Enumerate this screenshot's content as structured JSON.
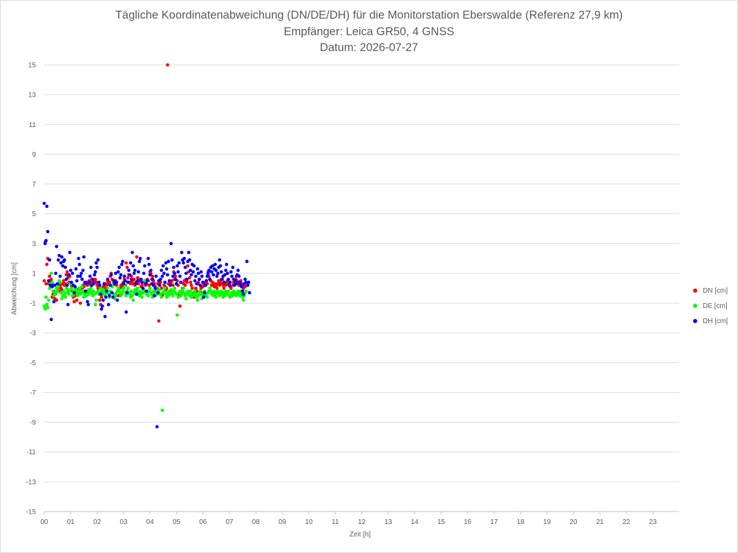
{
  "chart_data": {
    "type": "scatter",
    "title": "Tägliche Koordinatenabweichung (DN/DE/DH) für die Monitorstation Eberswalde (Referenz 27,9 km)",
    "subtitle": "Empfänger: Leica GR50, 4 GNSS",
    "date_line": "Datum: 2026-07-27",
    "xlabel": "Zeit [h]",
    "ylabel": "Abweichung [cm]",
    "xlim": [
      0,
      24
    ],
    "ylim": [
      -15,
      15
    ],
    "x_ticks": [
      "00",
      "01",
      "02",
      "03",
      "04",
      "05",
      "06",
      "07",
      "08",
      "09",
      "10",
      "11",
      "12",
      "13",
      "14",
      "15",
      "16",
      "17",
      "18",
      "19",
      "20",
      "21",
      "22",
      "23"
    ],
    "y_ticks": [
      15,
      13,
      11,
      9,
      7,
      5,
      3,
      1,
      -1,
      -3,
      -5,
      -7,
      -9,
      -11,
      -13,
      -15
    ],
    "grid": "horizontal",
    "legend_position": "right",
    "sample_interval_h": 0.0333,
    "series": [
      {
        "name": "DN [cm]",
        "color": "#ff0000",
        "values": [
          0.5,
          3.1,
          0.3,
          1.6,
          2.0,
          0.3,
          0.8,
          0.5,
          0.6,
          -0.6,
          -0.4,
          -0.2,
          -0.7,
          -0.3,
          -0.8,
          0.0,
          0.1,
          -0.2,
          0.2,
          0.0,
          -0.1,
          0.3,
          0.5,
          0.2,
          0.3,
          0.9,
          1.1,
          0.7,
          0.4,
          0.8,
          0.3,
          0.1,
          -0.2,
          -0.6,
          -0.9,
          -0.5,
          -0.3,
          -0.8,
          -0.4,
          -0.1,
          0.0,
          -1.0,
          -0.3,
          0.0,
          0.2,
          0.1,
          -0.2,
          0.3,
          0.4,
          0.2,
          0.3,
          0.5,
          0.4,
          0.2,
          0.6,
          0.4,
          0.3,
          0.5,
          0.6,
          0.4,
          0.2,
          0.0,
          -0.4,
          -0.8,
          -1.1,
          -0.6,
          -0.3,
          0.1,
          0.2,
          0.0,
          0.3,
          0.2,
          0.5,
          0.3,
          0.4,
          0.8,
          1.0,
          0.6,
          0.2,
          0.4,
          0.3,
          0.5,
          0.2,
          -0.2,
          -0.5,
          -0.1,
          0.0,
          0.2,
          0.1,
          0.3,
          0.4,
          0.6,
          0.2,
          1.7,
          1.4,
          0.7,
          0.9,
          0.4,
          0.3,
          0.8,
          0.5,
          0.3,
          0.6,
          0.2,
          0.4,
          2.1,
          0.7,
          0.3,
          0.5,
          0.6,
          0.1,
          0.2,
          -0.3,
          -0.1,
          0.4,
          0.2,
          0.3,
          0.6,
          0.5,
          0.2,
          1.1,
          1.0,
          0.6,
          0.8,
          0.5,
          0.3,
          0.1,
          -0.2,
          0.0,
          0.3,
          -2.2,
          0.2,
          0.4,
          0.0,
          -0.5,
          -0.3,
          0.2,
          0.1,
          -0.1,
          0.0,
          15.0,
          0.3,
          -0.2,
          0.2,
          0.4,
          0.5,
          0.2,
          1.1,
          0.6,
          0.8,
          0.3,
          0.5,
          0.2,
          -0.4,
          -1.2,
          -0.5,
          -0.3,
          0.0,
          0.3,
          0.5,
          0.2,
          0.6,
          0.4,
          1.5,
          1.1,
          0.7,
          0.4,
          0.2,
          0.0,
          -0.3,
          -0.6,
          -0.4,
          0.0,
          -0.2,
          0.3,
          0.4,
          0.6,
          0.2,
          0.0,
          -0.3,
          0.1,
          0.3,
          0.2,
          0.4,
          0.5,
          0.3,
          1.1,
          0.8,
          0.6,
          0.5,
          0.2,
          0.4,
          0.2,
          0.1,
          0.3,
          0.2,
          0.0,
          0.3,
          0.5,
          0.2,
          0.4,
          0.6,
          0.3,
          0.2,
          0.0,
          0.3,
          0.2,
          0.4,
          0.5,
          0.3,
          0.2,
          0.1,
          0.0,
          -0.3,
          0.2,
          0.4,
          0.3,
          0.6,
          0.8,
          0.5,
          0.3,
          0.2,
          0.4,
          0.5,
          0.3,
          0.2,
          0.0,
          0.2,
          0.1,
          -0.2
        ]
      },
      {
        "name": "DE [cm]",
        "color": "#00ff00",
        "values": [
          -1.2,
          -1.4,
          -0.6,
          -1.1,
          -1.3,
          -0.8,
          0.0,
          0.3,
          1.0,
          0.4,
          -0.2,
          -0.5,
          -0.3,
          -0.4,
          0.0,
          -0.2,
          0.1,
          0.5,
          0.4,
          -0.3,
          -0.7,
          -0.5,
          -0.2,
          -0.4,
          -0.6,
          0.0,
          -0.3,
          -0.1,
          -0.4,
          -0.2,
          0.3,
          0.0,
          -0.5,
          -0.2,
          -0.4,
          -0.1,
          0.0,
          -0.3,
          -0.5,
          -0.2,
          0.0,
          -0.4,
          -0.2,
          0.1,
          -0.3,
          -0.6,
          -0.4,
          -0.2,
          -0.5,
          -0.3,
          -0.1,
          -0.4,
          -0.2,
          0.0,
          -0.3,
          -0.5,
          -0.2,
          -0.4,
          -1.1,
          -0.8,
          -0.3,
          -0.2,
          -0.4,
          -0.3,
          0.0,
          -0.2,
          -0.4,
          -0.1,
          -0.3,
          -0.5,
          -0.2,
          -0.3,
          0.0,
          -0.4,
          -0.6,
          -0.2,
          -0.3,
          0.1,
          0.2,
          -0.4,
          -0.7,
          -0.5,
          -0.3,
          -0.2,
          0.0,
          -0.1,
          -0.3,
          -0.5,
          -0.4,
          -0.2,
          0.0,
          0.2,
          -0.3,
          -0.5,
          -0.2,
          0.0,
          -0.3,
          -0.4,
          -0.6,
          -0.2,
          -0.5,
          -0.8,
          -0.3,
          -0.1,
          -0.4,
          -0.2,
          0.0,
          -0.3,
          -0.5,
          -0.2,
          -0.4,
          -0.6,
          -0.3,
          -0.1,
          0.5,
          -0.2,
          -0.4,
          -0.3,
          -0.5,
          -0.2,
          0.0,
          -0.3,
          -0.4,
          -0.6,
          -0.2,
          -0.3,
          -0.5,
          0.0,
          -0.2,
          -0.4,
          -0.3,
          -0.1,
          -0.4,
          -0.6,
          -8.2,
          -0.3,
          -0.2,
          0.0,
          -0.4,
          -0.6,
          -0.3,
          -0.5,
          -0.2,
          -0.4,
          -0.1,
          -0.3,
          -0.5,
          -0.2,
          0.0,
          -0.3,
          -0.4,
          -1.8,
          -0.6,
          -0.3,
          -0.2,
          -0.5,
          -0.4,
          -0.2,
          0.0,
          -0.3,
          -0.5,
          -0.7,
          -0.4,
          -0.2,
          -0.3,
          -0.5,
          -0.2,
          -0.6,
          -0.4,
          -0.3,
          -0.5,
          -0.2,
          -0.4,
          -0.6,
          -0.8,
          -0.5,
          -0.3,
          -0.2,
          -0.4,
          -0.7,
          -0.5,
          -0.3,
          -0.2,
          -0.5,
          -0.4,
          -0.6,
          -0.3,
          -0.2,
          0.0,
          -0.2,
          -0.4,
          -0.3,
          -0.5,
          -0.2,
          -0.4,
          -0.6,
          -0.3,
          -0.2,
          -0.4,
          -0.5,
          -0.3,
          -0.2,
          -0.4,
          -0.6,
          -0.3,
          -0.5,
          -0.2,
          -0.4,
          -0.3,
          -0.2,
          -0.5,
          -0.6,
          -0.4,
          -0.3,
          -0.5,
          -0.2,
          -0.4,
          -0.3,
          -0.5,
          -0.4,
          -0.2,
          -0.3,
          -0.5,
          -0.2,
          -0.4,
          -0.6,
          -0.8,
          -0.5,
          -0.3,
          -0.2
        ]
      },
      {
        "name": "DH [cm]",
        "color": "#0000ff",
        "values": [
          5.7,
          3.0,
          3.2,
          5.5,
          3.8,
          0.5,
          1.9,
          0.2,
          -2.1,
          0.1,
          0.2,
          -0.9,
          0.2,
          1.0,
          2.8,
          0.3,
          1.9,
          2.2,
          0.8,
          1.7,
          2.1,
          1.5,
          1.8,
          1.9,
          1.4,
          0.6,
          0.2,
          -1.1,
          0.9,
          2.4,
          1.2,
          0.4,
          1.0,
          0.2,
          -0.3,
          0.1,
          1.3,
          0.5,
          0.8,
          2.0,
          1.6,
          0.8,
          1.0,
          0.6,
          1.2,
          2.1,
          0.4,
          -0.2,
          0.3,
          -0.9,
          -1.1,
          0.4,
          0.8,
          1.4,
          0.2,
          0.6,
          0.3,
          0.9,
          1.1,
          1.7,
          1.4,
          1.9,
          0.4,
          0.2,
          -0.4,
          -1.4,
          -1.2,
          -0.8,
          0.3,
          -1.9,
          -0.6,
          -0.2,
          0.6,
          -1.1,
          -0.5,
          0.2,
          0.9,
          -0.3,
          -0.6,
          0.5,
          0.3,
          1.0,
          0.4,
          -0.8,
          1.1,
          1.4,
          0.7,
          0.9,
          1.6,
          1.8,
          0.3,
          0.8,
          0.5,
          -1.6,
          -0.3,
          0.4,
          1.2,
          0.9,
          1.7,
          0.6,
          2.4,
          1.5,
          1.0,
          1.2,
          0.3,
          -0.4,
          0.5,
          1.1,
          1.8,
          2.0,
          0.6,
          0.4,
          0.0,
          1.0,
          1.5,
          0.3,
          -0.2,
          0.5,
          2.0,
          1.6,
          0.9,
          1.2,
          0.3,
          0.6,
          0.2,
          -0.5,
          0.0,
          0.8,
          -9.3,
          -0.3,
          0.5,
          0.2,
          0.6,
          1.2,
          0.8,
          1.5,
          1.0,
          0.4,
          1.7,
          1.3,
          0.9,
          1.8,
          0.5,
          0.2,
          3.0,
          1.9,
          0.8,
          1.4,
          1.0,
          0.6,
          0.3,
          1.5,
          1.1,
          1.7,
          0.8,
          0.4,
          2.4,
          1.9,
          1.7,
          2.0,
          1.4,
          1.0,
          0.6,
          1.8,
          2.4,
          1.9,
          1.2,
          0.9,
          1.6,
          1.1,
          1.5,
          0.5,
          0.8,
          0.3,
          1.3,
          1.0,
          0.6,
          0.2,
          1.1,
          0.8,
          0.4,
          -0.6,
          -0.3,
          0.2,
          0.5,
          0.8,
          1.0,
          1.2,
          0.6,
          1.4,
          1.1,
          1.5,
          0.9,
          1.3,
          1.6,
          1.2,
          0.8,
          1.0,
          1.4,
          1.9,
          1.5,
          1.1,
          0.6,
          0.8,
          0.4,
          0.9,
          1.2,
          1.6,
          1.0,
          0.6,
          0.2,
          0.4,
          1.1,
          0.8,
          1.4,
          0.6,
          0.2,
          0.5,
          0.3,
          0.9,
          1.2,
          0.8,
          0.4,
          0.2,
          0.1,
          -0.2,
          -0.4,
          0.3,
          0.6,
          0.4,
          1.8,
          0.2,
          0.4,
          -0.3
        ]
      }
    ]
  }
}
